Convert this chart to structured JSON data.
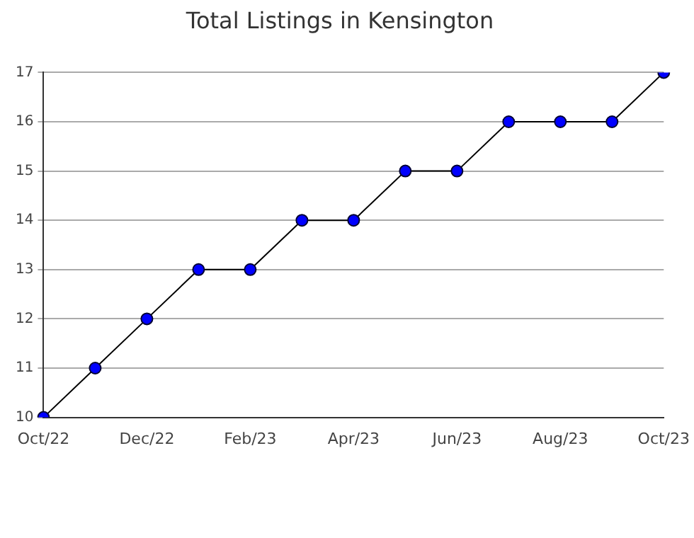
{
  "chart_data": {
    "type": "line",
    "title": "Total Listings in Kensington",
    "categories": [
      "Oct/22",
      null,
      "Dec/22",
      null,
      "Feb/23",
      null,
      "Apr/23",
      null,
      "Jun/23",
      null,
      "Aug/23",
      null,
      "Oct/23"
    ],
    "series": [
      {
        "color": "#0000ff",
        "values": [
          10,
          11,
          12,
          13,
          13,
          14,
          14,
          15,
          15,
          16,
          16,
          16,
          17
        ]
      }
    ],
    "ylim": [
      10,
      17
    ],
    "yticks": [
      10,
      11,
      12,
      13,
      14,
      15,
      16,
      17
    ],
    "grid": "y",
    "legend": false,
    "marker": "circle",
    "line_style": "solid"
  }
}
